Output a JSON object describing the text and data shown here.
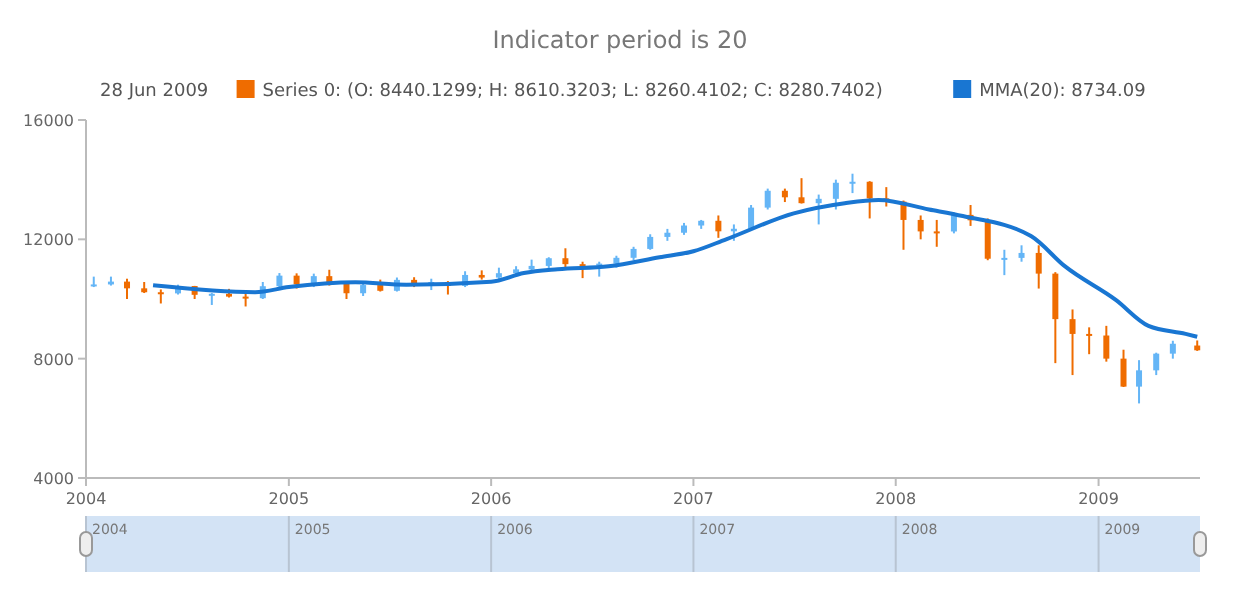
{
  "chart_data": {
    "type": "candlestick",
    "title": "Indicator period is 20",
    "annotations": [
      "28 Jun 2009"
    ],
    "legend": "top left",
    "xlim": [
      "2004-01-01",
      "2009-07-03"
    ],
    "ylim": [
      4000,
      16000
    ],
    "yticks": [
      4000,
      8000,
      12000,
      16000
    ],
    "xticks": [
      {
        "value": "2004-01-01",
        "label": "2004"
      },
      {
        "value": "2005-01-01",
        "label": "2005"
      },
      {
        "value": "2006-01-01",
        "label": "2006"
      },
      {
        "value": "2007-01-01",
        "label": "2007"
      },
      {
        "value": "2008-01-01",
        "label": "2008"
      },
      {
        "value": "2009-01-01",
        "label": "2009"
      }
    ],
    "series": [
      {
        "name": "Series 0: (O: 8440.1299; H: 8610.3203; L: 8260.4102; C: 8280.7402)",
        "type": "candlestick",
        "color": "#ef6c00",
        "x": [
          "2004-01-15",
          "2004-02-15",
          "2004-03-15",
          "2004-04-15",
          "2004-05-15",
          "2004-06-15",
          "2004-07-15",
          "2004-08-15",
          "2004-09-15",
          "2004-10-15",
          "2004-11-15",
          "2004-12-15",
          "2005-01-15",
          "2005-02-15",
          "2005-03-15",
          "2005-04-15",
          "2005-05-15",
          "2005-06-15",
          "2005-07-15",
          "2005-08-15",
          "2005-09-15",
          "2005-10-15",
          "2005-11-15",
          "2005-12-15",
          "2006-01-15",
          "2006-02-15",
          "2006-03-15",
          "2006-04-15",
          "2006-05-15",
          "2006-06-15",
          "2006-07-15",
          "2006-08-15",
          "2006-09-15",
          "2006-10-15",
          "2006-11-15",
          "2006-12-15",
          "2007-01-15",
          "2007-02-15",
          "2007-03-15",
          "2007-04-15",
          "2007-05-15",
          "2007-06-15",
          "2007-07-15",
          "2007-08-15",
          "2007-09-15",
          "2007-10-15",
          "2007-11-15",
          "2007-12-15",
          "2008-01-15",
          "2008-02-15",
          "2008-03-15",
          "2008-04-15",
          "2008-05-15",
          "2008-06-15",
          "2008-07-15",
          "2008-08-15",
          "2008-09-15",
          "2008-10-15",
          "2008-11-15",
          "2008-12-15",
          "2009-01-15",
          "2009-02-15",
          "2009-03-15",
          "2009-04-15",
          "2009-05-15",
          "2009-06-28"
        ],
        "ohlc": [
          [
            10450,
            10750,
            10400,
            10488
          ],
          [
            10488,
            10750,
            10450,
            10583
          ],
          [
            10583,
            10680,
            10000,
            10357
          ],
          [
            10357,
            10570,
            10200,
            10226
          ],
          [
            10226,
            10320,
            9850,
            10188
          ],
          [
            10188,
            10480,
            10150,
            10435
          ],
          [
            10435,
            10440,
            10000,
            10140
          ],
          [
            10140,
            10200,
            9800,
            10174
          ],
          [
            10174,
            10340,
            10050,
            10080
          ],
          [
            10080,
            10240,
            9750,
            10027
          ],
          [
            10027,
            10570,
            10000,
            10428
          ],
          [
            10428,
            10870,
            10400,
            10783
          ],
          [
            10783,
            10860,
            10350,
            10490
          ],
          [
            10490,
            10850,
            10400,
            10766
          ],
          [
            10766,
            10980,
            10450,
            10504
          ],
          [
            10504,
            10600,
            10000,
            10193
          ],
          [
            10193,
            10550,
            10100,
            10467
          ],
          [
            10467,
            10650,
            10250,
            10275
          ],
          [
            10275,
            10720,
            10250,
            10641
          ],
          [
            10641,
            10730,
            10400,
            10482
          ],
          [
            10482,
            10680,
            10300,
            10569
          ],
          [
            10569,
            10600,
            10150,
            10440
          ],
          [
            10440,
            10930,
            10400,
            10806
          ],
          [
            10806,
            10960,
            10650,
            10718
          ],
          [
            10718,
            11050,
            10650,
            10865
          ],
          [
            10865,
            11100,
            10750,
            10993
          ],
          [
            10993,
            11320,
            10950,
            11109
          ],
          [
            11109,
            11400,
            11000,
            11367
          ],
          [
            11367,
            11700,
            11000,
            11168
          ],
          [
            11168,
            11250,
            10700,
            11150
          ],
          [
            11150,
            11250,
            10750,
            11186
          ],
          [
            11186,
            11450,
            11050,
            11381
          ],
          [
            11381,
            11750,
            11300,
            11679
          ],
          [
            11679,
            12170,
            11650,
            12081
          ],
          [
            12081,
            12350,
            11950,
            12221
          ],
          [
            12221,
            12550,
            12150,
            12463
          ],
          [
            12463,
            12650,
            12350,
            12622
          ],
          [
            12622,
            12800,
            12050,
            12269
          ],
          [
            12269,
            12500,
            11950,
            12354
          ],
          [
            12354,
            13150,
            12300,
            13063
          ],
          [
            13063,
            13700,
            13000,
            13628
          ],
          [
            13628,
            13700,
            13250,
            13409
          ],
          [
            13409,
            14050,
            13200,
            13212
          ],
          [
            13212,
            13500,
            12500,
            13358
          ],
          [
            13358,
            14000,
            13000,
            13896
          ],
          [
            13896,
            14200,
            13550,
            13930
          ],
          [
            13930,
            13950,
            12700,
            13372
          ],
          [
            13372,
            13750,
            13100,
            13265
          ],
          [
            13265,
            13300,
            11650,
            12650
          ],
          [
            12650,
            12800,
            12000,
            12266
          ],
          [
            12266,
            12650,
            11750,
            12263
          ],
          [
            12263,
            12900,
            12200,
            12820
          ],
          [
            12820,
            13150,
            12450,
            12638
          ],
          [
            12638,
            12700,
            11300,
            11350
          ],
          [
            11350,
            11650,
            10800,
            11378
          ],
          [
            11378,
            11800,
            11250,
            11544
          ],
          [
            11544,
            11800,
            10350,
            10851
          ],
          [
            10851,
            10900,
            7850,
            9325
          ],
          [
            9325,
            9650,
            7450,
            8829
          ],
          [
            8829,
            9050,
            8150,
            8776
          ],
          [
            8776,
            9100,
            7900,
            8001
          ],
          [
            8001,
            8300,
            7050,
            7063
          ],
          [
            7063,
            7950,
            6500,
            7609
          ],
          [
            7609,
            8200,
            7450,
            8168
          ],
          [
            8168,
            8600,
            8000,
            8500
          ],
          [
            8440.1299,
            8610.3203,
            8260.4102,
            8280.7402
          ]
        ],
        "colors": [
          "#64b5f6",
          "#64b5f6",
          "#ef6c00",
          "#ef6c00",
          "#ef6c00",
          "#64b5f6",
          "#ef6c00",
          "#64b5f6",
          "#ef6c00",
          "#ef6c00",
          "#64b5f6",
          "#64b5f6",
          "#ef6c00",
          "#64b5f6",
          "#ef6c00",
          "#ef6c00",
          "#64b5f6",
          "#ef6c00",
          "#64b5f6",
          "#ef6c00",
          "#64b5f6",
          "#ef6c00",
          "#64b5f6",
          "#ef6c00",
          "#64b5f6",
          "#64b5f6",
          "#64b5f6",
          "#64b5f6",
          "#ef6c00",
          "#ef6c00",
          "#64b5f6",
          "#64b5f6",
          "#64b5f6",
          "#64b5f6",
          "#64b5f6",
          "#64b5f6",
          "#64b5f6",
          "#ef6c00",
          "#64b5f6",
          "#64b5f6",
          "#64b5f6",
          "#ef6c00",
          "#ef6c00",
          "#64b5f6",
          "#64b5f6",
          "#64b5f6",
          "#ef6c00",
          "#ef6c00",
          "#ef6c00",
          "#ef6c00",
          "#ef6c00",
          "#64b5f6",
          "#ef6c00",
          "#ef6c00",
          "#64b5f6",
          "#64b5f6",
          "#ef6c00",
          "#ef6c00",
          "#ef6c00",
          "#ef6c00",
          "#ef6c00",
          "#ef6c00",
          "#64b5f6",
          "#64b5f6",
          "#64b5f6",
          "#ef6c00"
        ]
      },
      {
        "name": "MMA(20): 8734.09",
        "type": "line",
        "color": "#1976d2",
        "x": [
          "2004-05-01",
          "2004-11-01",
          "2005-01-01",
          "2005-05-01",
          "2005-08-01",
          "2006-01-01",
          "2006-03-01",
          "2006-05-01",
          "2006-08-01",
          "2006-11-01",
          "2007-01-01",
          "2007-03-01",
          "2007-07-01",
          "2007-10-01",
          "2007-12-01",
          "2008-03-01",
          "2008-05-01",
          "2008-09-01",
          "2008-11-01",
          "2009-02-01",
          "2009-04-01",
          "2009-06-07",
          "2009-06-28"
        ],
        "values": [
          10460,
          10230,
          10400,
          10560,
          10480,
          10580,
          10870,
          11000,
          11100,
          11400,
          11600,
          12000,
          12870,
          13210,
          13320,
          13000,
          12780,
          12110,
          11100,
          9970,
          9100,
          8830,
          8734.09
        ]
      }
    ]
  }
}
